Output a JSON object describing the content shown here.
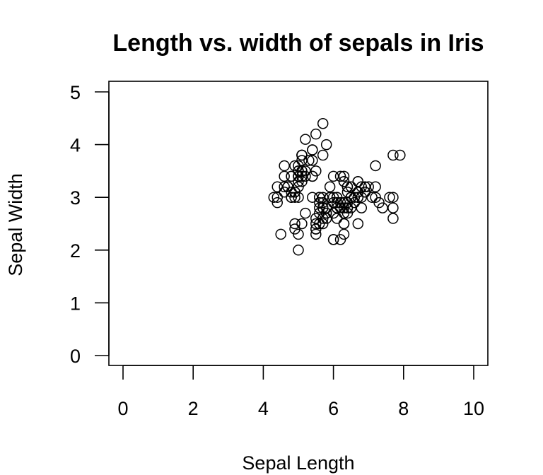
{
  "chart_data": {
    "type": "scatter",
    "title": "Length vs. width of sepals in Iris",
    "xlabel": "Sepal Length",
    "ylabel": "Sepal Width",
    "xlim": [
      0,
      10
    ],
    "ylim": [
      0,
      5
    ],
    "x_ticks": [
      "0",
      "2",
      "4",
      "6",
      "8",
      "10"
    ],
    "y_ticks": [
      "0",
      "1",
      "2",
      "3",
      "4",
      "5"
    ],
    "grid": false,
    "legend": "none",
    "marker": "open-circle",
    "color": "#000000",
    "points": [
      [
        5.1,
        3.5
      ],
      [
        4.9,
        3.0
      ],
      [
        4.7,
        3.2
      ],
      [
        4.6,
        3.1
      ],
      [
        5.0,
        3.6
      ],
      [
        5.4,
        3.9
      ],
      [
        4.6,
        3.4
      ],
      [
        5.0,
        3.4
      ],
      [
        4.4,
        2.9
      ],
      [
        4.9,
        3.1
      ],
      [
        5.4,
        3.7
      ],
      [
        4.8,
        3.4
      ],
      [
        4.8,
        3.0
      ],
      [
        4.3,
        3.0
      ],
      [
        5.8,
        4.0
      ],
      [
        5.7,
        4.4
      ],
      [
        5.4,
        3.9
      ],
      [
        5.1,
        3.5
      ],
      [
        5.7,
        3.8
      ],
      [
        5.1,
        3.8
      ],
      [
        5.4,
        3.4
      ],
      [
        5.1,
        3.7
      ],
      [
        4.6,
        3.6
      ],
      [
        5.1,
        3.3
      ],
      [
        4.8,
        3.4
      ],
      [
        5.0,
        3.0
      ],
      [
        5.0,
        3.4
      ],
      [
        5.2,
        3.5
      ],
      [
        5.2,
        3.4
      ],
      [
        4.7,
        3.2
      ],
      [
        4.8,
        3.1
      ],
      [
        5.4,
        3.4
      ],
      [
        5.2,
        4.1
      ],
      [
        5.5,
        4.2
      ],
      [
        4.9,
        3.1
      ],
      [
        5.0,
        3.2
      ],
      [
        5.5,
        3.5
      ],
      [
        4.9,
        3.6
      ],
      [
        4.4,
        3.0
      ],
      [
        5.1,
        3.4
      ],
      [
        5.0,
        3.5
      ],
      [
        4.5,
        2.3
      ],
      [
        4.4,
        3.2
      ],
      [
        5.0,
        3.5
      ],
      [
        5.1,
        3.8
      ],
      [
        4.8,
        3.0
      ],
      [
        5.1,
        3.8
      ],
      [
        4.6,
        3.2
      ],
      [
        5.3,
        3.7
      ],
      [
        5.0,
        3.3
      ],
      [
        7.0,
        3.2
      ],
      [
        6.4,
        3.2
      ],
      [
        6.9,
        3.1
      ],
      [
        5.5,
        2.3
      ],
      [
        6.5,
        2.8
      ],
      [
        5.7,
        2.8
      ],
      [
        6.3,
        3.3
      ],
      [
        4.9,
        2.4
      ],
      [
        6.6,
        2.9
      ],
      [
        5.2,
        2.7
      ],
      [
        5.0,
        2.0
      ],
      [
        5.9,
        3.0
      ],
      [
        6.0,
        2.2
      ],
      [
        6.1,
        2.9
      ],
      [
        5.6,
        2.9
      ],
      [
        6.7,
        3.1
      ],
      [
        5.6,
        3.0
      ],
      [
        5.8,
        2.7
      ],
      [
        6.2,
        2.2
      ],
      [
        5.6,
        2.5
      ],
      [
        5.9,
        3.2
      ],
      [
        6.1,
        2.8
      ],
      [
        6.3,
        2.5
      ],
      [
        6.1,
        2.8
      ],
      [
        6.4,
        2.9
      ],
      [
        6.6,
        3.0
      ],
      [
        6.8,
        2.8
      ],
      [
        6.7,
        3.0
      ],
      [
        6.0,
        2.9
      ],
      [
        5.7,
        2.6
      ],
      [
        5.5,
        2.4
      ],
      [
        5.5,
        2.4
      ],
      [
        5.8,
        2.7
      ],
      [
        6.0,
        2.7
      ],
      [
        5.4,
        3.0
      ],
      [
        6.0,
        3.4
      ],
      [
        6.7,
        3.1
      ],
      [
        6.3,
        2.3
      ],
      [
        5.6,
        3.0
      ],
      [
        5.5,
        2.5
      ],
      [
        5.5,
        2.6
      ],
      [
        6.1,
        3.0
      ],
      [
        5.8,
        2.6
      ],
      [
        5.0,
        2.3
      ],
      [
        5.6,
        2.7
      ],
      [
        5.7,
        3.0
      ],
      [
        5.7,
        2.9
      ],
      [
        6.2,
        2.9
      ],
      [
        5.1,
        2.5
      ],
      [
        5.7,
        2.8
      ],
      [
        6.3,
        3.3
      ],
      [
        5.8,
        2.7
      ],
      [
        7.1,
        3.0
      ],
      [
        6.3,
        2.9
      ],
      [
        6.5,
        3.0
      ],
      [
        7.6,
        3.0
      ],
      [
        4.9,
        2.5
      ],
      [
        7.3,
        2.9
      ],
      [
        6.7,
        2.5
      ],
      [
        7.2,
        3.6
      ],
      [
        6.5,
        3.2
      ],
      [
        6.4,
        2.7
      ],
      [
        6.8,
        3.0
      ],
      [
        5.7,
        2.5
      ],
      [
        5.8,
        2.8
      ],
      [
        6.4,
        3.2
      ],
      [
        6.5,
        3.0
      ],
      [
        7.7,
        3.8
      ],
      [
        7.7,
        2.6
      ],
      [
        6.0,
        2.2
      ],
      [
        6.9,
        3.2
      ],
      [
        5.6,
        2.8
      ],
      [
        7.7,
        2.8
      ],
      [
        6.3,
        2.7
      ],
      [
        6.7,
        3.3
      ],
      [
        7.2,
        3.2
      ],
      [
        6.2,
        2.8
      ],
      [
        6.1,
        3.0
      ],
      [
        6.4,
        2.8
      ],
      [
        7.2,
        3.0
      ],
      [
        7.4,
        2.8
      ],
      [
        7.9,
        3.8
      ],
      [
        6.4,
        2.8
      ],
      [
        6.3,
        2.8
      ],
      [
        6.1,
        2.6
      ],
      [
        7.7,
        3.0
      ],
      [
        6.3,
        3.4
      ],
      [
        6.4,
        3.1
      ],
      [
        6.0,
        3.0
      ],
      [
        6.9,
        3.1
      ],
      [
        6.7,
        3.1
      ],
      [
        6.9,
        3.1
      ],
      [
        5.8,
        2.7
      ],
      [
        6.8,
        3.2
      ],
      [
        6.7,
        3.3
      ],
      [
        6.7,
        3.0
      ],
      [
        6.3,
        2.5
      ],
      [
        6.5,
        3.0
      ],
      [
        6.2,
        3.4
      ],
      [
        5.9,
        3.0
      ]
    ]
  }
}
